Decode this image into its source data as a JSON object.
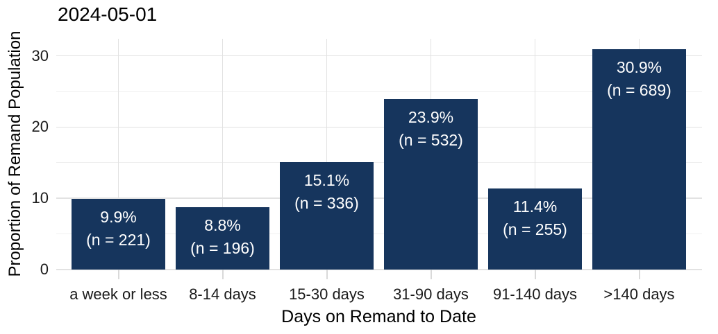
{
  "chart": {
    "title": "2024-05-01"
  },
  "chart_data": {
    "type": "bar",
    "title": "2024-05-01",
    "xlabel": "Days on Remand to Date",
    "ylabel": "Proportion of Remand Population",
    "categories": [
      "a week or less",
      "8-14 days",
      "15-30 days",
      "31-90 days",
      "91-140 days",
      ">140 days"
    ],
    "values": [
      9.9,
      8.8,
      15.1,
      23.9,
      11.4,
      30.9
    ],
    "counts": [
      221,
      196,
      336,
      532,
      255,
      689
    ],
    "bar_labels": [
      {
        "pct": "9.9%",
        "n": "(n = 221)"
      },
      {
        "pct": "8.8%",
        "n": "(n = 196)"
      },
      {
        "pct": "15.1%",
        "n": "(n = 336)"
      },
      {
        "pct": "23.9%",
        "n": "(n = 532)"
      },
      {
        "pct": "11.4%",
        "n": "(n = 255)"
      },
      {
        "pct": "30.9%",
        "n": "(n = 689)"
      }
    ],
    "y_major_ticks": [
      0,
      10,
      20,
      30
    ],
    "y_minor_ticks": [
      5,
      15,
      25
    ],
    "ylim": [
      0,
      32.4
    ],
    "grid": "horizontal major+minor, vertical major at category centers",
    "legend": "none",
    "colors": {
      "bar": "#16355d",
      "bar_label_text": "#ffffff",
      "grid_major": "#e2e2e2",
      "grid_minor": "#efefef",
      "axis_text": "#1a1a1a",
      "tick_mark": "#d9d9d9",
      "background": "#ffffff"
    }
  }
}
